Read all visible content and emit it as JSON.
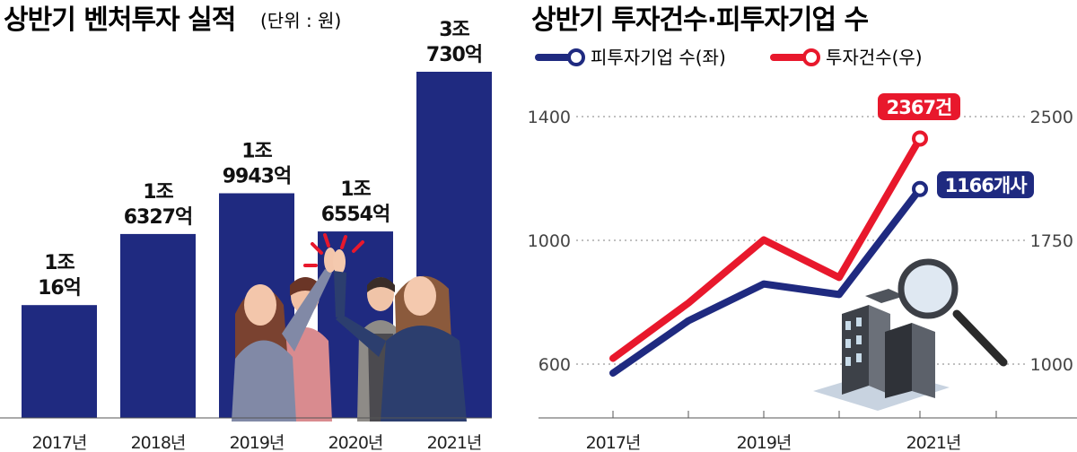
{
  "left": {
    "title": "상반기 벤처투자 실적",
    "unit": "(단위 : 원)"
  },
  "right": {
    "title": "상반기 투자건수·피투자기업 수",
    "legend": [
      {
        "label": "피투자기업 수(좌)",
        "color": "#1f2a80"
      },
      {
        "label": "투자건수(우)",
        "color": "#e8182c"
      }
    ],
    "left_ticks": [
      "1400",
      "1000",
      "600"
    ],
    "right_ticks": [
      "2500",
      "1750",
      "1000"
    ],
    "callouts": {
      "investments": "2367건",
      "companies": "1166개사"
    }
  },
  "chart_data": [
    {
      "type": "bar",
      "title": "상반기 벤처투자 실적",
      "unit": "원",
      "categories": [
        "2017년",
        "2018년",
        "2019년",
        "2020년",
        "2021년"
      ],
      "values": [
        10016,
        16327,
        19943,
        16554,
        30730
      ],
      "value_unit": "억원",
      "labels": [
        [
          "1조",
          "16억"
        ],
        [
          "1조",
          "6327억"
        ],
        [
          "1조",
          "9943억"
        ],
        [
          "1조",
          "6554억"
        ],
        [
          "3조",
          "730억"
        ]
      ],
      "color": "#1f2a80"
    },
    {
      "type": "line",
      "title": "상반기 투자건수·피투자기업 수",
      "x": [
        "2017",
        "2017-2",
        "2018",
        "2018-2",
        "2019",
        "2019-2",
        "2020",
        "2020-2",
        "2021"
      ],
      "x_tick_labels": [
        "2017년",
        "2019년",
        "2021년"
      ],
      "series": [
        {
          "name": "피투자기업 수(좌)",
          "axis": "left",
          "color": "#1f2a80",
          "values": [
            571,
            null,
            740,
            null,
            859,
            null,
            825,
            null,
            1166
          ]
        },
        {
          "name": "투자건수(우)",
          "axis": "right",
          "color": "#e8182c",
          "values": [
            1035,
            null,
            1370,
            null,
            1753,
            null,
            1525,
            null,
            2367
          ]
        }
      ],
      "left_axis": {
        "ticks": [
          600,
          1000,
          1400
        ]
      },
      "right_axis": {
        "ticks": [
          1000,
          1750,
          2500
        ]
      }
    }
  ]
}
